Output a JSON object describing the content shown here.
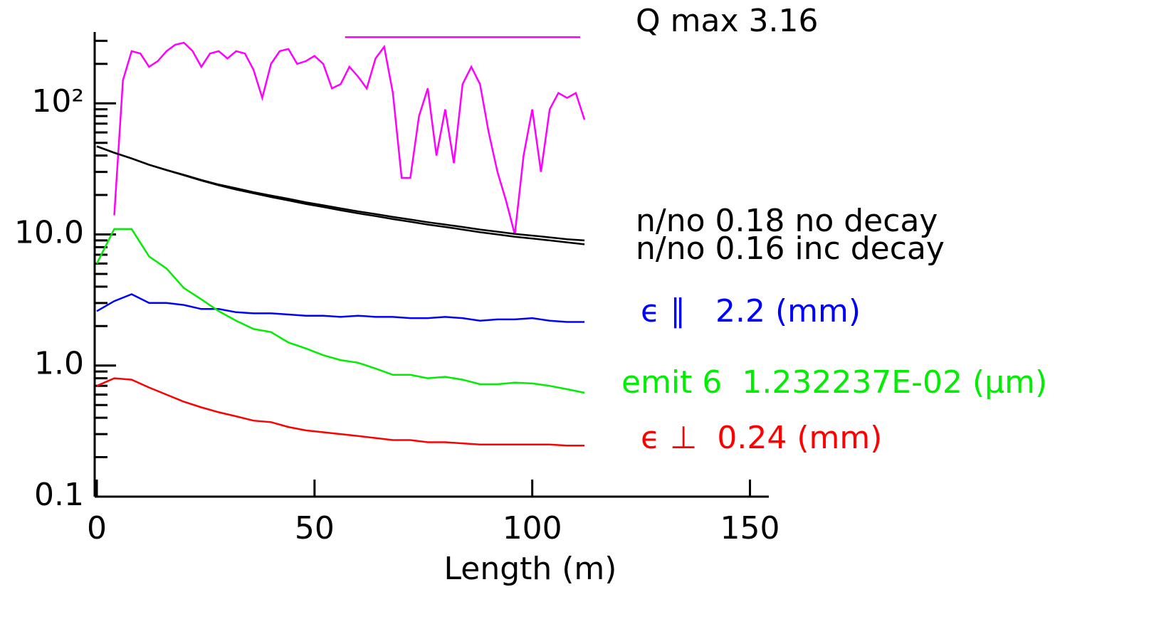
{
  "chart_data": {
    "type": "line",
    "x_label": "Length (m)",
    "xlim": [
      0,
      154
    ],
    "xticks": [
      0,
      50,
      100,
      150
    ],
    "ylim": [
      0.1,
      350
    ],
    "yscale": "log",
    "yticks": [
      {
        "value": 0.1,
        "label": "0.1"
      },
      {
        "value": 1,
        "label": "1.0"
      },
      {
        "value": 10,
        "label": "10.0"
      },
      {
        "value": 100,
        "label": "10²"
      }
    ],
    "yminorticks": [
      0.2,
      0.3,
      0.4,
      0.5,
      0.6,
      0.7,
      0.8,
      0.9,
      2,
      3,
      4,
      5,
      6,
      7,
      8,
      9,
      20,
      30,
      40,
      50,
      60,
      70,
      80,
      90,
      200,
      300
    ],
    "series": [
      {
        "color": "#ff00ff",
        "x": [
          4,
          6,
          8,
          10,
          12,
          14,
          16,
          18,
          20,
          22,
          24,
          26,
          28,
          30,
          32,
          34,
          36,
          38,
          40,
          42,
          44,
          46,
          48,
          50,
          52,
          54,
          56,
          58,
          60,
          62,
          64,
          66,
          68,
          70,
          72,
          74,
          76,
          78,
          80,
          82,
          84,
          86,
          88,
          90,
          92,
          94,
          96,
          98,
          100,
          102,
          104,
          106,
          108,
          110,
          112
        ],
        "values": [
          14,
          150,
          250,
          240,
          190,
          210,
          250,
          280,
          290,
          250,
          190,
          240,
          250,
          220,
          250,
          240,
          180,
          110,
          200,
          250,
          260,
          200,
          210,
          230,
          200,
          130,
          140,
          190,
          160,
          130,
          220,
          270,
          120,
          27,
          27,
          80,
          130,
          40,
          90,
          35,
          140,
          190,
          140,
          60,
          30,
          18,
          10,
          40,
          90,
          30,
          90,
          120,
          110,
          120,
          75
        ]
      },
      {
        "color": "#ff00ff",
        "x": [
          57,
          111
        ],
        "values": [
          320,
          320
        ]
      },
      {
        "color": "#000000",
        "x": [
          0,
          4,
          8,
          12,
          16,
          20,
          24,
          28,
          32,
          36,
          40,
          44,
          48,
          52,
          56,
          60,
          64,
          68,
          72,
          76,
          80,
          84,
          88,
          92,
          96,
          100,
          104,
          108,
          112
        ],
        "values": [
          47,
          42,
          38,
          34,
          31,
          28.5,
          26,
          24,
          22.5,
          21,
          19.8,
          18.7,
          17.6,
          16.7,
          15.8,
          15,
          14.3,
          13.6,
          13,
          12.4,
          11.9,
          11.4,
          10.9,
          10.5,
          10.1,
          9.8,
          9.5,
          9.2,
          9.0
        ]
      },
      {
        "color": "#000000",
        "x": [
          0,
          4,
          8,
          12,
          16,
          20,
          24,
          28,
          32,
          36,
          40,
          44,
          48,
          52,
          56,
          60,
          64,
          68,
          72,
          76,
          80,
          84,
          88,
          92,
          96,
          100,
          104,
          108,
          112
        ],
        "values": [
          47,
          42,
          38,
          34,
          31,
          28.3,
          25.8,
          23.7,
          22,
          20.6,
          19.3,
          18.2,
          17.1,
          16.2,
          15.3,
          14.5,
          13.8,
          13.1,
          12.5,
          11.9,
          11.4,
          10.9,
          10.4,
          10,
          9.6,
          9.3,
          9,
          8.7,
          8.4
        ]
      },
      {
        "color": "#0000ff",
        "x": [
          0,
          4,
          8,
          12,
          16,
          20,
          24,
          28,
          32,
          36,
          40,
          44,
          48,
          52,
          56,
          60,
          64,
          68,
          72,
          76,
          80,
          84,
          88,
          92,
          96,
          100,
          104,
          108,
          112
        ],
        "values": [
          2.6,
          3.1,
          3.5,
          3.0,
          3.0,
          2.9,
          2.7,
          2.7,
          2.55,
          2.5,
          2.5,
          2.45,
          2.4,
          2.4,
          2.35,
          2.4,
          2.35,
          2.35,
          2.3,
          2.3,
          2.35,
          2.3,
          2.2,
          2.25,
          2.25,
          2.3,
          2.2,
          2.15,
          2.15
        ]
      },
      {
        "color": "#00ee00",
        "x": [
          0,
          4,
          8,
          12,
          16,
          20,
          24,
          28,
          32,
          36,
          40,
          44,
          48,
          52,
          56,
          60,
          64,
          68,
          72,
          76,
          80,
          84,
          88,
          92,
          96,
          100,
          104,
          108,
          112
        ],
        "values": [
          6.0,
          11,
          11,
          6.8,
          5.5,
          3.9,
          3.2,
          2.6,
          2.2,
          1.9,
          1.8,
          1.5,
          1.35,
          1.2,
          1.1,
          1.05,
          0.95,
          0.85,
          0.85,
          0.8,
          0.82,
          0.78,
          0.72,
          0.72,
          0.74,
          0.73,
          0.7,
          0.66,
          0.62
        ]
      },
      {
        "color": "#ff0000",
        "x": [
          0,
          4,
          8,
          12,
          16,
          20,
          24,
          28,
          32,
          36,
          40,
          44,
          48,
          52,
          56,
          60,
          64,
          68,
          72,
          76,
          80,
          84,
          88,
          92,
          96,
          100,
          104,
          108,
          112
        ],
        "values": [
          0.7,
          0.8,
          0.78,
          0.68,
          0.6,
          0.53,
          0.48,
          0.44,
          0.41,
          0.38,
          0.37,
          0.34,
          0.32,
          0.31,
          0.3,
          0.29,
          0.28,
          0.27,
          0.27,
          0.26,
          0.26,
          0.255,
          0.25,
          0.25,
          0.25,
          0.25,
          0.25,
          0.245,
          0.245
        ]
      }
    ],
    "annotations": [
      {
        "text": "Q max 3.16",
        "color": "#000000"
      },
      {
        "text": "n/no 0.18 no decay",
        "color": "#000000"
      },
      {
        "text": "n/no 0.16 inc decay",
        "color": "#000000"
      },
      {
        "text": "ϵ ∥   2.2 (mm)",
        "color": "#0000ff"
      },
      {
        "text": "emit 6  1.232237E-02 (μm)",
        "color": "#00ee00"
      },
      {
        "text": "ϵ ⊥  0.24 (mm)",
        "color": "#ff0000"
      }
    ]
  }
}
